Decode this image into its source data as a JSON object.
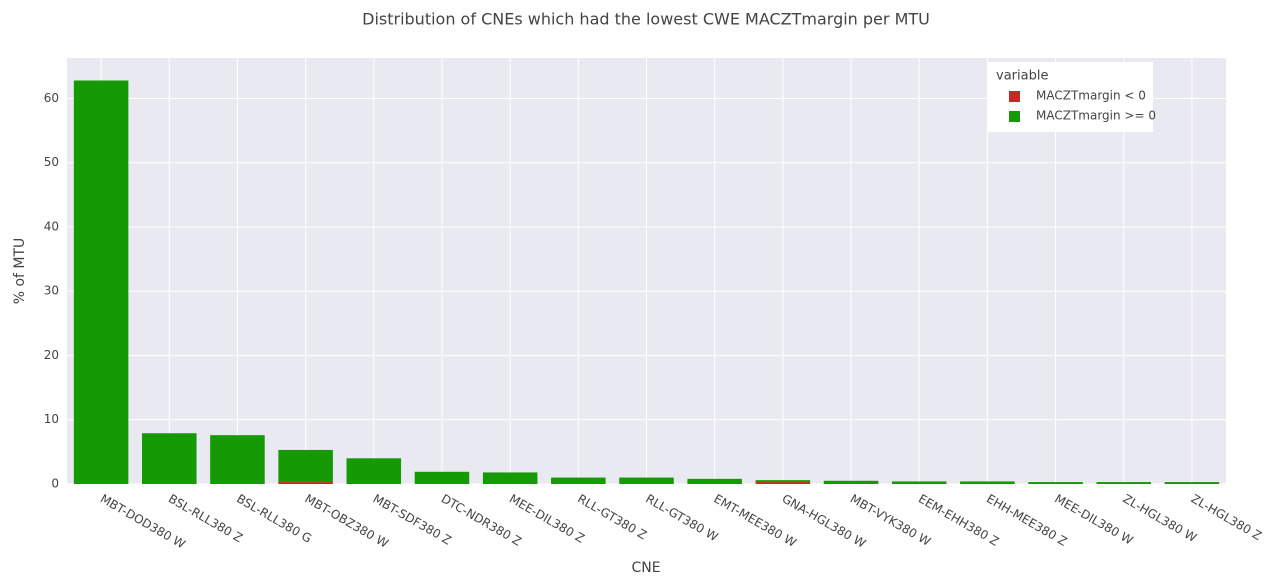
{
  "chart_data": {
    "type": "bar",
    "stacked": true,
    "title": "Distribution of CNEs which had the lowest CWE MACZTmargin per MTU",
    "x_label": "CNE",
    "y_label": "% of MTU",
    "categories": [
      "MBT-DOD380 W",
      "BSL-RLL380 Z",
      "BSL-RLL380 G",
      "MBT-OBZ380 W",
      "MBT-SDF380 Z",
      "DTC-NDR380 Z",
      "MEE-DIL380 Z",
      "RLL-GT380 Z",
      "RLL-GT380 W",
      "EMT-MEE380 W",
      "GNA-HGL380 W",
      "MBT-VYK380 W",
      "EEM-EHH380 Z",
      "EHH-MEE380 Z",
      "MEE-DIL380 W",
      "ZL-HGL380 W",
      "ZL-HGL380 Z"
    ],
    "series": [
      {
        "name": "MACZTmargin < 0",
        "color": "#c62828",
        "values": [
          0,
          0,
          0,
          0.3,
          0,
          0,
          0,
          0,
          0,
          0,
          0.3,
          0,
          0,
          0,
          0,
          0,
          0
        ]
      },
      {
        "name": "MACZTmargin >= 0",
        "color": "#159a06",
        "values": [
          62.8,
          7.9,
          7.6,
          5.0,
          4.0,
          1.9,
          1.8,
          1.0,
          1.0,
          0.8,
          0.3,
          0.5,
          0.4,
          0.4,
          0.3,
          0.3,
          0.3
        ]
      }
    ],
    "ylim": [
      0,
      66.3
    ],
    "yticks": [
      0,
      10,
      20,
      30,
      40,
      50,
      60
    ],
    "grid": true,
    "legend_title": "variable",
    "legend_position": "top-right"
  }
}
